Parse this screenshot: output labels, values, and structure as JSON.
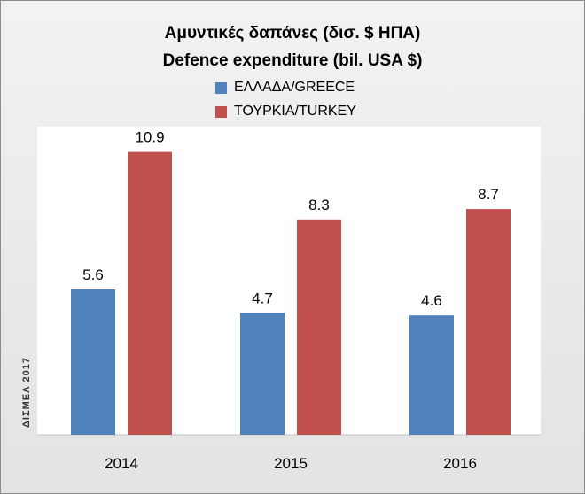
{
  "chart_data": {
    "type": "bar",
    "title": "Αμυντικές δαπάνες (δισ. $ ΗΠΑ)",
    "subtitle": "Defence expenditure (bil. USA $)",
    "categories": [
      "2014",
      "2015",
      "2016"
    ],
    "series": [
      {
        "name": "ΕΛΛΑΔΑ/GREECE",
        "values": [
          5.6,
          4.7,
          4.6
        ],
        "value_labels": [
          "5.6",
          "4.7",
          "4.6"
        ],
        "color": "#4f81bd"
      },
      {
        "name": "ΤΟΥΡΚΙΑ/TURKEY",
        "values": [
          10.9,
          8.3,
          8.7
        ],
        "value_labels": [
          "10.9",
          "8.3",
          "8.7"
        ],
        "color": "#c0504d"
      }
    ],
    "ylim": [
      0,
      12
    ],
    "grid": false,
    "legend_position": "top-center"
  },
  "watermark": "ΔΙΣΜΕΛ 2017",
  "colors": {
    "plot_background": "#ffffff",
    "frame_background": "#eaeaea"
  }
}
